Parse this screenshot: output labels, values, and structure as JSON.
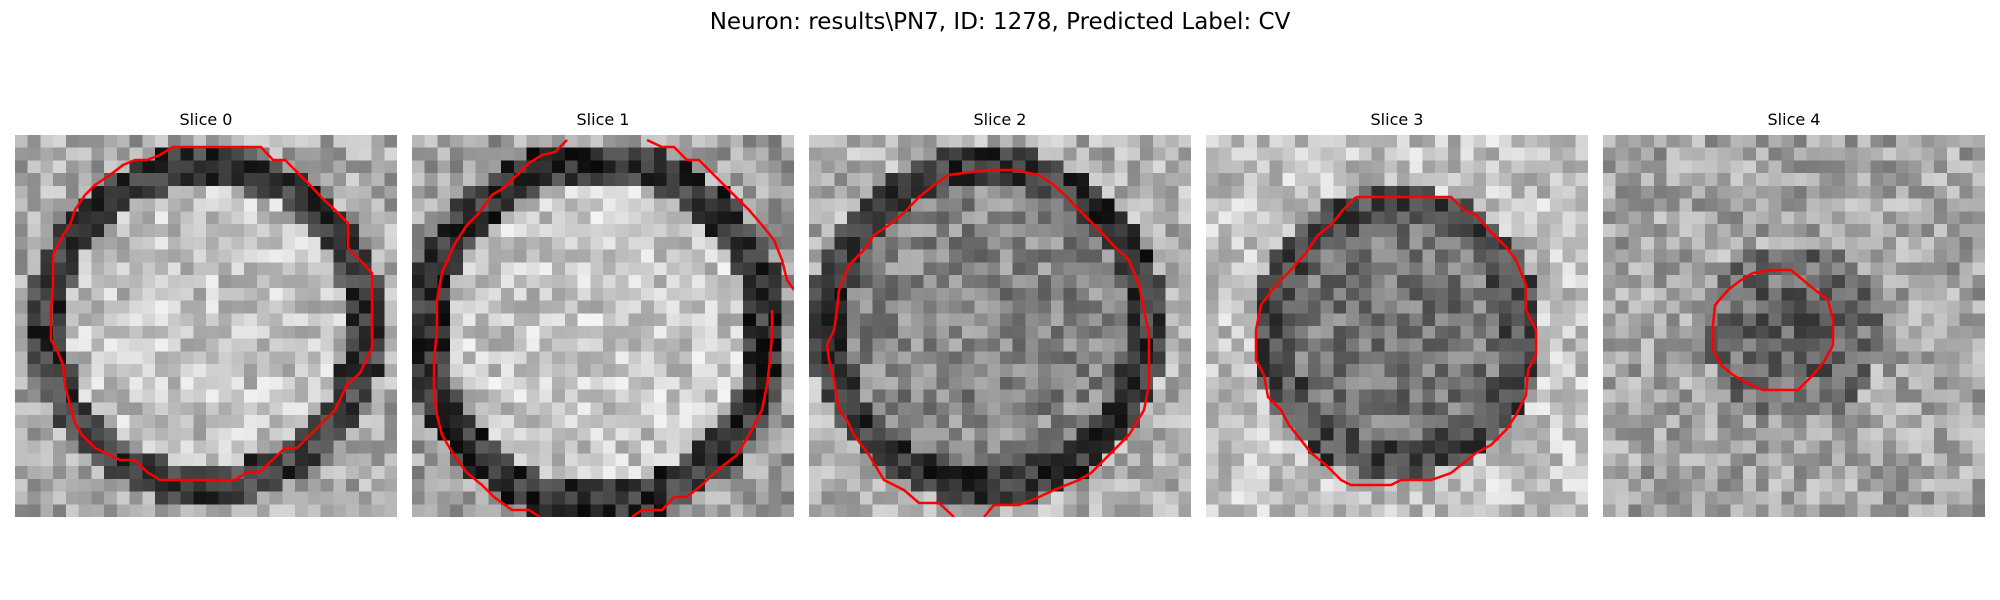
{
  "figure": {
    "title": "Neuron: results\\PN7, ID: 1278, Predicted Label: CV"
  },
  "slices": [
    {
      "title": "Slice 0",
      "image": "grayscale-em-patch",
      "contour_color": "#ff0000"
    },
    {
      "title": "Slice 1",
      "image": "grayscale-em-patch",
      "contour_color": "#ff0000"
    },
    {
      "title": "Slice 2",
      "image": "grayscale-em-patch",
      "contour_color": "#ff0000"
    },
    {
      "title": "Slice 3",
      "image": "grayscale-em-patch",
      "contour_color": "#ff0000"
    },
    {
      "title": "Slice 4",
      "image": "grayscale-em-patch",
      "contour_color": "#ff0000"
    }
  ]
}
